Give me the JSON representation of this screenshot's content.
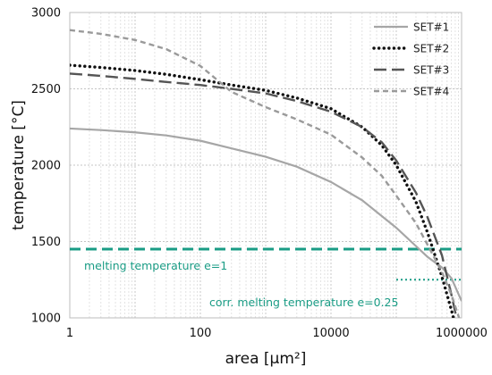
{
  "chart_data": {
    "type": "line",
    "xlabel": "area [µm²]",
    "ylabel": "temperature [°C]",
    "x_scale": "log",
    "xlim": [
      1,
      1000000
    ],
    "ylim": [
      1000,
      3000
    ],
    "x_ticks": [
      "1",
      "100",
      "10000",
      "1000000"
    ],
    "y_ticks": [
      "1000",
      "1500",
      "2000",
      "2500",
      "3000"
    ],
    "grid": true,
    "legend_position": "top-right",
    "series": [
      {
        "name": "SET#1",
        "color": "#a6a6a6",
        "style": "solid",
        "x": [
          1,
          3,
          10,
          30,
          100,
          300,
          1000,
          3000,
          10000,
          30000,
          100000,
          200000,
          300000,
          500000,
          700000,
          1000000
        ],
        "y": [
          2240,
          2230,
          2215,
          2195,
          2160,
          2110,
          2055,
          1990,
          1890,
          1770,
          1590,
          1470,
          1400,
          1330,
          1260,
          1110
        ]
      },
      {
        "name": "SET#2",
        "color": "#111111",
        "style": "dotted",
        "x": [
          1,
          3,
          10,
          30,
          100,
          300,
          1000,
          3000,
          10000,
          30000,
          60000,
          100000,
          200000,
          300000,
          500000,
          700000,
          1000000
        ],
        "y": [
          2655,
          2640,
          2620,
          2595,
          2560,
          2525,
          2490,
          2440,
          2370,
          2250,
          2130,
          2000,
          1760,
          1560,
          1270,
          1050,
          800
        ]
      },
      {
        "name": "SET#3",
        "color": "#555555",
        "style": "dashed",
        "x": [
          1,
          3,
          10,
          30,
          100,
          300,
          1000,
          3000,
          10000,
          30000,
          60000,
          100000,
          200000,
          300000,
          500000,
          700000,
          1000000
        ],
        "y": [
          2600,
          2585,
          2565,
          2545,
          2525,
          2500,
          2470,
          2420,
          2350,
          2250,
          2150,
          2030,
          1820,
          1660,
          1410,
          1150,
          850
        ]
      },
      {
        "name": "SET#4",
        "color": "#9a9a9a",
        "style": "dashed",
        "x": [
          1,
          3,
          10,
          30,
          100,
          300,
          1000,
          3000,
          10000,
          30000,
          60000,
          100000,
          200000,
          300000,
          500000,
          700000,
          1000000
        ],
        "y": [
          2885,
          2860,
          2820,
          2760,
          2650,
          2480,
          2380,
          2300,
          2200,
          2050,
          1930,
          1800,
          1620,
          1480,
          1300,
          1150,
          950
        ]
      }
    ],
    "annotations": [
      {
        "label": "melting temperature e=1",
        "y": 1450,
        "x_range": [
          1,
          1000000
        ],
        "color": "#1a9c85",
        "style": "dashed"
      },
      {
        "label": "corr. melting temperature e=0.25",
        "y": 1250,
        "x_range": [
          100000,
          1000000
        ],
        "color": "#1a9c85",
        "style": "dotted"
      }
    ]
  }
}
